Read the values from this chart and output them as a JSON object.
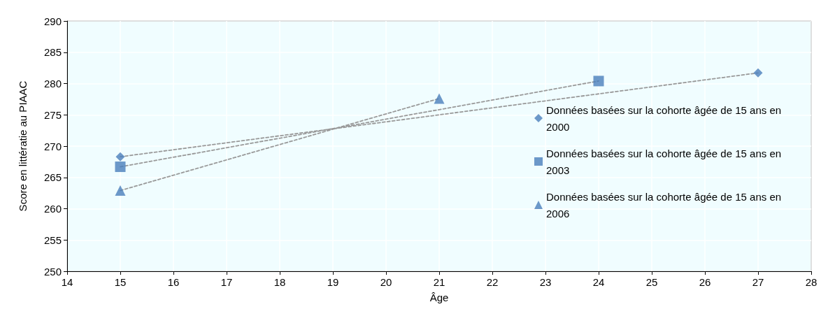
{
  "chart_data": {
    "type": "scatter",
    "xlabel": "Âge",
    "ylabel": "Score en littératie au PIAAC",
    "xlim": [
      14,
      28
    ],
    "xticks": [
      14,
      15,
      16,
      17,
      18,
      19,
      20,
      21,
      22,
      23,
      24,
      25,
      26,
      27,
      28
    ],
    "ylim": [
      250,
      290
    ],
    "yticks": [
      250,
      255,
      260,
      265,
      270,
      275,
      280,
      285,
      290
    ],
    "grid": true,
    "legend": "right",
    "series": [
      {
        "type": "line",
        "x": [
          15,
          27
        ],
        "values": [
          268.3,
          281.7
        ],
        "color": "#999999",
        "line_style": "dashed",
        "marker": "none"
      },
      {
        "type": "line",
        "x": [
          15,
          24
        ],
        "values": [
          266.7,
          280.4
        ],
        "color": "#999999",
        "line_style": "dashed",
        "marker": "none"
      },
      {
        "type": "line",
        "x": [
          15,
          21
        ],
        "values": [
          262.9,
          277.6
        ],
        "color": "#999999",
        "line_style": "dashed",
        "marker": "none"
      },
      {
        "name": "Données basées sur la cohorte âgée de 15 ans en 2000",
        "x": [
          15,
          27
        ],
        "values": [
          268.3,
          281.7
        ],
        "color": "#4a7ebb",
        "marker": "diamond"
      },
      {
        "name": "Données basées sur la cohorte âgée de 15 ans en 2003",
        "x": [
          15,
          24
        ],
        "values": [
          266.7,
          280.4
        ],
        "color": "#4a7ebb",
        "marker": "square"
      },
      {
        "name": "Données basées sur la cohorte âgée de 15 ans en 2006",
        "x": [
          15,
          21
        ],
        "values": [
          262.9,
          277.6
        ],
        "color": "#4a7ebb",
        "marker": "triangle"
      }
    ]
  }
}
